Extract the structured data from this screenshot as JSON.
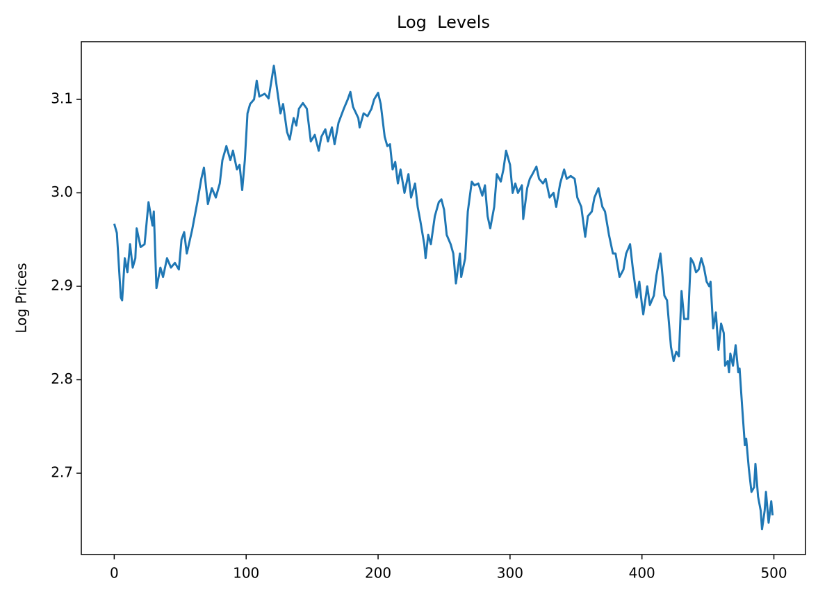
{
  "chart_data": {
    "type": "line",
    "title": "Log  Levels",
    "y_label": "Log Prices",
    "x": [
      0,
      2,
      5,
      6,
      8,
      10,
      12,
      14,
      16,
      17,
      20,
      23,
      26,
      29,
      30,
      32,
      35,
      37,
      40,
      43,
      46,
      49,
      51,
      53,
      55,
      59,
      63,
      66,
      68,
      71,
      74,
      77,
      80,
      82,
      85,
      88,
      90,
      93,
      95,
      97,
      99,
      101,
      103,
      106,
      108,
      110,
      114,
      117,
      121,
      124,
      126,
      128,
      131,
      133,
      136,
      138,
      140,
      143,
      146,
      149,
      152,
      155,
      157,
      160,
      162,
      165,
      167,
      170,
      174,
      177,
      179,
      181,
      185,
      186,
      189,
      192,
      195,
      197,
      200,
      202,
      205,
      207,
      209,
      211,
      213,
      215,
      217,
      220,
      223,
      225,
      228,
      230,
      232,
      235,
      236,
      238,
      240,
      243,
      246,
      248,
      250,
      252,
      255,
      257,
      259,
      262,
      263,
      266,
      268,
      271,
      273,
      276,
      279,
      281,
      283,
      285,
      288,
      290,
      293,
      295,
      297,
      300,
      302,
      304,
      306,
      309,
      310,
      313,
      315,
      317,
      320,
      322,
      325,
      327,
      330,
      333,
      335,
      338,
      341,
      343,
      346,
      349,
      351,
      354,
      357,
      359,
      362,
      364,
      367,
      370,
      372,
      375,
      378,
      380,
      383,
      386,
      388,
      391,
      393,
      396,
      398,
      400,
      401,
      404,
      406,
      409,
      411,
      414,
      417,
      419,
      422,
      424,
      426,
      428,
      430,
      432,
      435,
      437,
      439,
      441,
      443,
      445,
      447,
      449,
      451,
      452,
      454,
      456,
      458,
      460,
      462,
      463,
      465,
      466,
      467,
      469,
      471,
      473,
      474,
      476,
      478,
      479,
      481,
      483,
      485,
      486,
      488,
      490,
      491,
      493,
      494,
      496,
      498,
      499
    ],
    "series": [
      {
        "name": "Log Prices",
        "color": "#1f77b4",
        "values": [
          2.967,
          2.957,
          2.888,
          2.885,
          2.93,
          2.915,
          2.945,
          2.92,
          2.93,
          2.962,
          2.942,
          2.945,
          2.99,
          2.965,
          2.98,
          2.898,
          2.92,
          2.91,
          2.93,
          2.92,
          2.925,
          2.918,
          2.95,
          2.958,
          2.935,
          2.96,
          2.99,
          3.015,
          3.027,
          2.988,
          3.005,
          2.995,
          3.01,
          3.035,
          3.05,
          3.035,
          3.045,
          3.025,
          3.03,
          3.003,
          3.035,
          3.085,
          3.095,
          3.1,
          3.12,
          3.103,
          3.106,
          3.101,
          3.136,
          3.105,
          3.085,
          3.095,
          3.065,
          3.057,
          3.08,
          3.072,
          3.09,
          3.096,
          3.09,
          3.055,
          3.062,
          3.045,
          3.06,
          3.068,
          3.055,
          3.07,
          3.052,
          3.075,
          3.09,
          3.1,
          3.108,
          3.092,
          3.08,
          3.07,
          3.085,
          3.082,
          3.09,
          3.1,
          3.107,
          3.095,
          3.06,
          3.05,
          3.052,
          3.025,
          3.033,
          3.01,
          3.025,
          3.0,
          3.02,
          2.995,
          3.01,
          2.985,
          2.97,
          2.945,
          2.93,
          2.955,
          2.945,
          2.975,
          2.99,
          2.993,
          2.982,
          2.955,
          2.945,
          2.935,
          2.903,
          2.935,
          2.91,
          2.93,
          2.98,
          3.012,
          3.008,
          3.01,
          2.997,
          3.008,
          2.975,
          2.962,
          2.985,
          3.02,
          3.012,
          3.025,
          3.045,
          3.03,
          3.0,
          3.01,
          3.0,
          3.008,
          2.972,
          3.005,
          3.015,
          3.02,
          3.028,
          3.015,
          3.01,
          3.015,
          2.995,
          3.0,
          2.985,
          3.01,
          3.025,
          3.015,
          3.018,
          3.015,
          2.995,
          2.985,
          2.953,
          2.975,
          2.98,
          2.995,
          3.005,
          2.985,
          2.98,
          2.955,
          2.935,
          2.935,
          2.91,
          2.918,
          2.935,
          2.945,
          2.92,
          2.888,
          2.905,
          2.88,
          2.87,
          2.9,
          2.88,
          2.89,
          2.912,
          2.935,
          2.89,
          2.885,
          2.835,
          2.82,
          2.83,
          2.825,
          2.895,
          2.865,
          2.865,
          2.93,
          2.925,
          2.915,
          2.918,
          2.93,
          2.92,
          2.905,
          2.9,
          2.905,
          2.855,
          2.872,
          2.832,
          2.86,
          2.85,
          2.815,
          2.82,
          2.808,
          2.828,
          2.815,
          2.837,
          2.808,
          2.812,
          2.77,
          2.73,
          2.737,
          2.705,
          2.68,
          2.685,
          2.71,
          2.675,
          2.66,
          2.64,
          2.66,
          2.68,
          2.647,
          2.67,
          2.655
        ]
      }
    ],
    "xlim": [
      -24.95,
      523.95
    ],
    "xticks": [
      0,
      100,
      200,
      300,
      400,
      500
    ],
    "ylim": [
      2.613,
      3.1617
    ],
    "yticks": [
      2.7,
      2.8,
      2.9,
      {
        "value": 3,
        "label": "3.0"
      },
      3.1
    ],
    "grid": false
  }
}
